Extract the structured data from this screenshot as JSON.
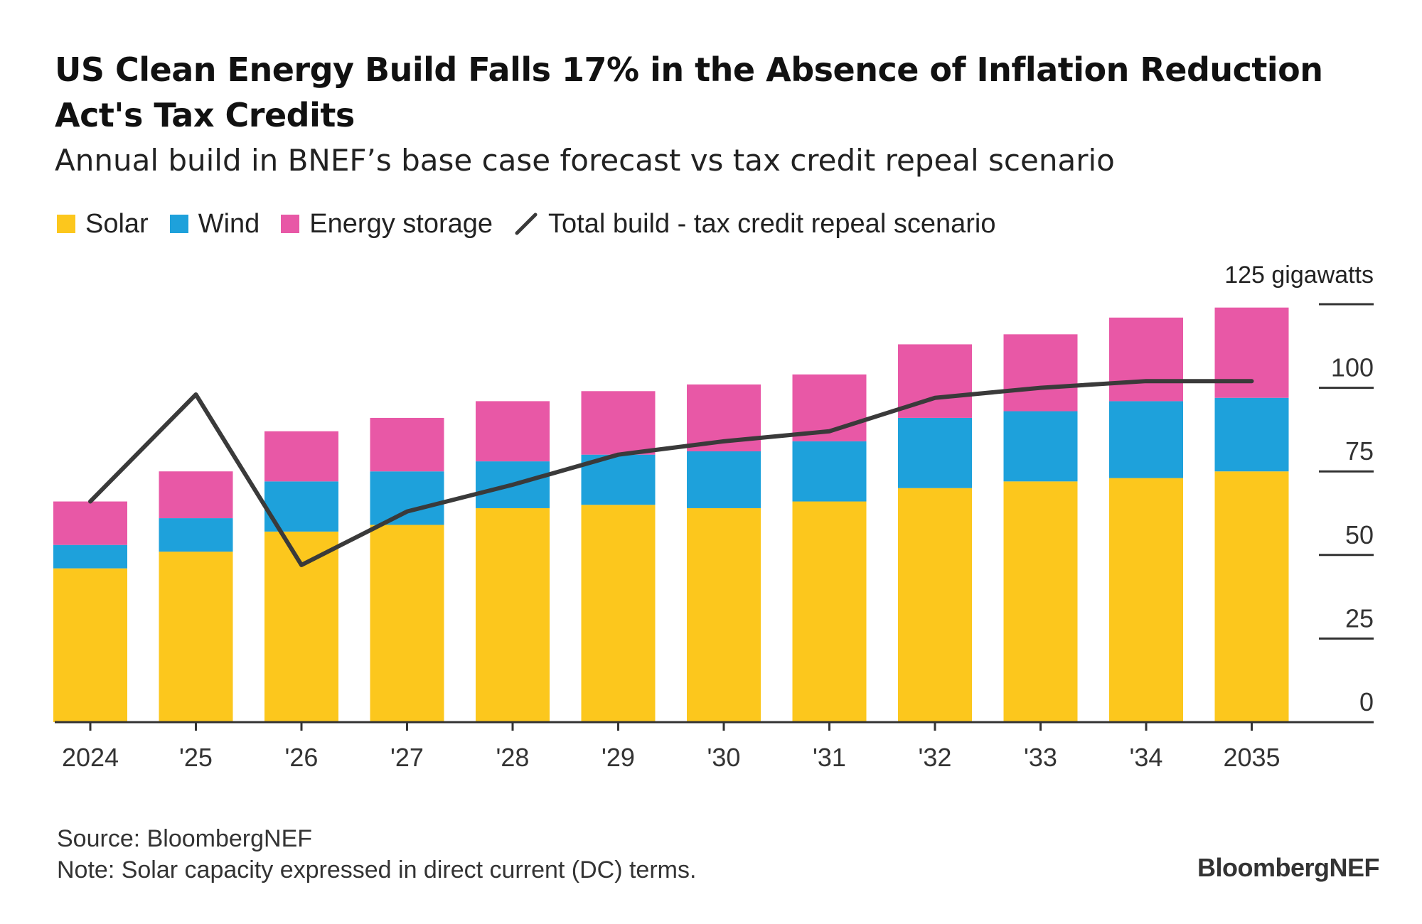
{
  "title": "US Clean Energy Build Falls 17% in the Absence of Inflation Reduction Act's Tax Credits",
  "subtitle": "Annual build in BNEF’s base case forecast vs tax credit repeal scenario",
  "legend": {
    "solar": "Solar",
    "wind": "Wind",
    "storage": "Energy storage",
    "line": "Total build - tax credit repeal scenario"
  },
  "colors": {
    "solar": "#fcc71d",
    "wind": "#1ea1db",
    "storage": "#e858a6",
    "line": "#3a3a3a",
    "axis": "#333333"
  },
  "footer": {
    "source": "Source: BloombergNEF",
    "note": "Note: Solar capacity expressed in direct current (DC) terms."
  },
  "brand": "BloombergNEF",
  "chart_data": {
    "type": "bar",
    "stacked": true,
    "categories": [
      "2024",
      "'25",
      "'26",
      "'27",
      "'28",
      "'29",
      "'30",
      "'31",
      "'32",
      "'33",
      "'34",
      "2035"
    ],
    "series": [
      {
        "name": "Solar",
        "values": [
          46,
          51,
          57,
          59,
          64,
          65,
          64,
          66,
          70,
          72,
          73,
          75
        ]
      },
      {
        "name": "Wind",
        "values": [
          7,
          10,
          15,
          16,
          14,
          15,
          17,
          18,
          21,
          21,
          23,
          22
        ]
      },
      {
        "name": "Energy storage",
        "values": [
          13,
          14,
          15,
          16,
          18,
          19,
          20,
          20,
          22,
          23,
          25,
          27
        ]
      }
    ],
    "line_series": {
      "name": "Total build - tax credit repeal scenario",
      "values": [
        66,
        98,
        47,
        63,
        71,
        80,
        84,
        87,
        97,
        100,
        102,
        102
      ]
    },
    "y_ticks": [
      0,
      25,
      50,
      75,
      100,
      125
    ],
    "y_unit_label": "125 gigawatts",
    "ylim": [
      0,
      125
    ],
    "y_axis_side": "right",
    "grid": false
  }
}
